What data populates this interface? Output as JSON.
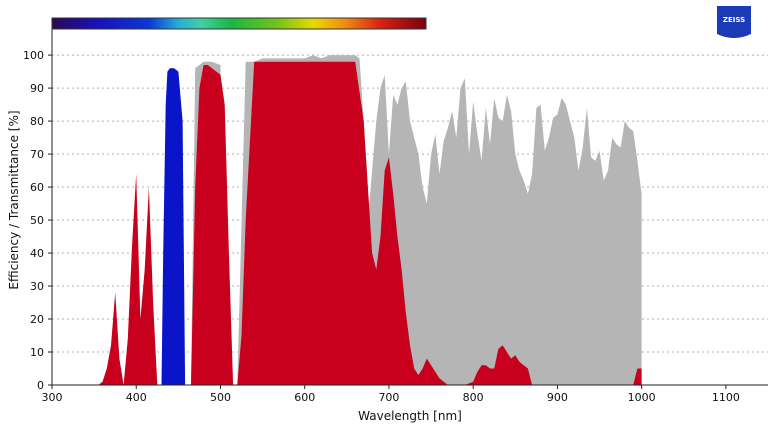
{
  "chart_data": {
    "type": "area",
    "xlabel": "Wavelength [nm]",
    "ylabel": "Efficiency / Transmittance [%]",
    "xlim": [
      300,
      1150
    ],
    "ylim": [
      0,
      107
    ],
    "xticks": [
      300,
      400,
      500,
      600,
      700,
      800,
      900,
      1000,
      1100
    ],
    "yticks": [
      0,
      10,
      20,
      30,
      40,
      50,
      60,
      70,
      80,
      90,
      100
    ],
    "grid": true,
    "spectrum_colorbar": {
      "range_nm": [
        300,
        745
      ]
    },
    "logo": {
      "text": "ZEISS",
      "color": "#1a3ab8"
    },
    "series": [
      {
        "color": "#b5b5b5",
        "x": [
          350,
          360,
          370,
          380,
          390,
          400,
          410,
          420,
          430,
          440,
          450,
          460,
          465,
          470,
          480,
          490,
          500,
          505,
          510,
          515,
          520,
          530,
          540,
          550,
          560,
          570,
          580,
          590,
          600,
          610,
          620,
          630,
          640,
          650,
          660,
          665,
          670,
          675,
          680,
          685,
          690,
          695,
          700,
          705,
          710,
          715,
          720,
          725,
          730,
          735,
          740,
          745,
          750,
          755,
          760,
          765,
          770,
          775,
          780,
          785,
          790,
          795,
          800,
          805,
          810,
          815,
          820,
          825,
          830,
          835,
          840,
          845,
          850,
          855,
          860,
          865,
          870,
          875,
          880,
          885,
          890,
          895,
          900,
          905,
          910,
          915,
          920,
          925,
          930,
          935,
          940,
          945,
          950,
          955,
          960,
          965,
          970,
          975,
          980,
          985,
          990,
          995,
          1000,
          1000
        ],
        "y": [
          0,
          0,
          0,
          0,
          0,
          0,
          0,
          0,
          0,
          0,
          0,
          0,
          0,
          96,
          98,
          98,
          97,
          0,
          0,
          0,
          0,
          98,
          98,
          99,
          99,
          99,
          99,
          99,
          99,
          100,
          99,
          100,
          100,
          100,
          100,
          99,
          80,
          50,
          65,
          80,
          90,
          94,
          70,
          88,
          85,
          90,
          92,
          80,
          75,
          70,
          60,
          55,
          70,
          76,
          64,
          74,
          78,
          83,
          75,
          90,
          93,
          70,
          86,
          76,
          68,
          84,
          73,
          87,
          81,
          80,
          88,
          83,
          70,
          65,
          62,
          58,
          64,
          84,
          85,
          71,
          75,
          81,
          82,
          87,
          85,
          80,
          75,
          65,
          72,
          84,
          69,
          68,
          71,
          62,
          65,
          75,
          73,
          72,
          80,
          78,
          77,
          68,
          58,
          0
        ]
      },
      {
        "color": "#c8001e",
        "x": [
          355,
          360,
          365,
          370,
          375,
          380,
          385,
          390,
          395,
          400,
          405,
          410,
          415,
          420,
          425,
          430,
          465,
          470,
          475,
          480,
          485,
          490,
          500,
          505,
          510,
          515,
          520,
          525,
          530,
          540,
          560,
          580,
          600,
          620,
          640,
          660,
          670,
          675,
          680,
          685,
          690,
          695,
          700,
          705,
          710,
          715,
          720,
          725,
          730,
          735,
          740,
          745,
          750,
          760,
          770,
          780,
          790,
          800,
          805,
          810,
          815,
          820,
          825,
          830,
          835,
          840,
          845,
          850,
          855,
          860,
          865,
          870,
          880,
          990,
          995,
          1000
        ],
        "y": [
          0,
          1,
          5,
          12,
          28,
          8,
          0,
          14,
          42,
          64,
          20,
          35,
          60,
          25,
          0,
          0,
          0,
          60,
          90,
          97,
          97,
          96,
          94,
          85,
          40,
          0,
          0,
          15,
          50,
          98,
          98,
          98,
          98,
          98,
          98,
          98,
          80,
          60,
          40,
          35,
          45,
          65,
          69,
          58,
          45,
          35,
          22,
          12,
          5,
          3,
          5,
          8,
          6,
          2,
          0,
          0,
          0,
          1,
          4,
          6,
          6,
          5,
          5,
          11,
          12,
          10,
          8,
          9,
          7,
          6,
          5,
          0,
          0,
          0,
          5,
          5
        ]
      },
      {
        "color": "#0a14c8",
        "x": [
          430,
          432,
          435,
          437,
          440,
          445,
          450,
          455,
          458,
          460
        ],
        "y": [
          0,
          40,
          85,
          95,
          96,
          96,
          95,
          80,
          0,
          0
        ]
      }
    ]
  }
}
